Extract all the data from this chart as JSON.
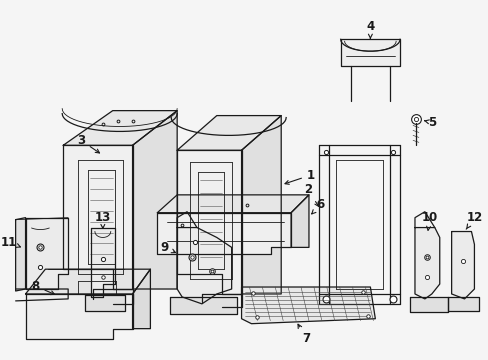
{
  "background_color": "#f5f5f5",
  "line_color": "#1a1a1a",
  "figsize": [
    4.89,
    3.6
  ],
  "dpi": 100,
  "border_color": "#cccccc"
}
